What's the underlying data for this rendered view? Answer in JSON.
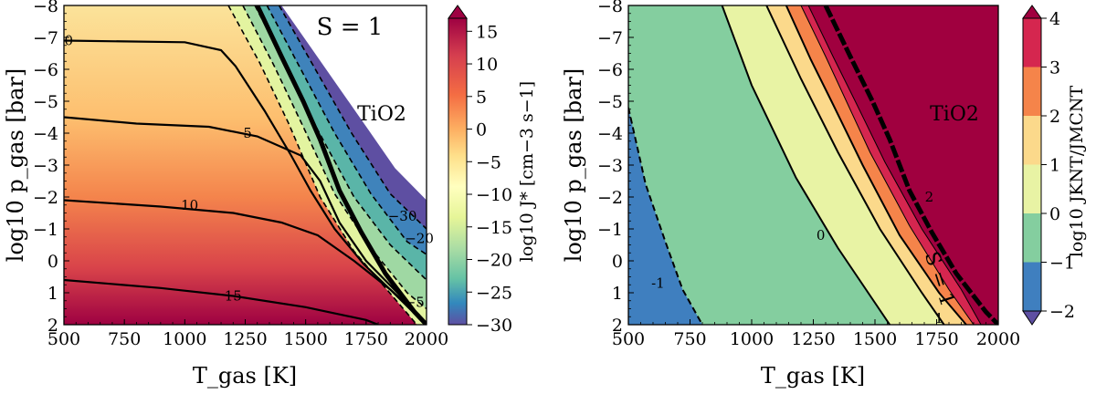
{
  "chart_data": [
    {
      "type": "heatmap",
      "title": "",
      "xlabel": "T_gas [K]",
      "ylabel": "log10 p_gas [bar]",
      "xlim": [
        500,
        2000
      ],
      "ylim": [
        2,
        -8
      ],
      "x_ticks": [
        500,
        750,
        1000,
        1250,
        1500,
        1750,
        2000
      ],
      "x_ticklabels": [
        "500",
        "750",
        "1000",
        "1250",
        "1500",
        "1750",
        "2000"
      ],
      "y_ticks": [
        -8,
        -7,
        -6,
        -5,
        -4,
        -3,
        -2,
        -1,
        0,
        1,
        2
      ],
      "y_ticklabels": [
        "−8",
        "−7",
        "−6",
        "−5",
        "−4",
        "−3",
        "−2",
        "−1",
        "0",
        "1",
        "2"
      ],
      "colorbar": {
        "label": "log10 J* [cm−3 s−1]",
        "range": [
          -30,
          17
        ],
        "ticks": [
          15,
          10,
          5,
          0,
          -5,
          -10,
          -15,
          -20,
          -25,
          -30
        ],
        "ticklabels": [
          "15",
          "10",
          "5",
          "0",
          "−5",
          "−10",
          "−15",
          "−20",
          "−25",
          "−30"
        ],
        "colormap": "Spectral_r",
        "extend": "max"
      },
      "annotations": [
        "S = 1",
        "TiO2"
      ],
      "contours": [
        {
          "level": 0,
          "label": "0",
          "points": [
            [
              500,
              -6.9
            ],
            [
              1000,
              -6.85
            ],
            [
              1150,
              -6.6
            ],
            [
              1210,
              -6.1
            ],
            [
              1330,
              -4.7
            ],
            [
              1440,
              -3.3
            ],
            [
              1520,
              -2.2
            ],
            [
              1620,
              -1.0
            ],
            [
              1740,
              0.1
            ],
            [
              1850,
              0.9
            ],
            [
              1970,
              1.7
            ]
          ]
        },
        {
          "level": 5,
          "label": "5",
          "points": [
            [
              500,
              -4.5
            ],
            [
              800,
              -4.3
            ],
            [
              1100,
              -4.2
            ],
            [
              1300,
              -3.9
            ],
            [
              1480,
              -3.3
            ],
            [
              1560,
              -2.5
            ],
            [
              1640,
              -1.2
            ],
            [
              1750,
              0.0
            ],
            [
              1880,
              1.0
            ],
            [
              1990,
              1.9
            ]
          ]
        },
        {
          "level": 10,
          "label": "10",
          "points": [
            [
              500,
              -1.9
            ],
            [
              900,
              -1.7
            ],
            [
              1200,
              -1.5
            ],
            [
              1400,
              -1.2
            ],
            [
              1550,
              -0.8
            ],
            [
              1700,
              0.0
            ],
            [
              1850,
              0.9
            ],
            [
              1990,
              1.95
            ]
          ]
        },
        {
          "level": 15,
          "label": "15",
          "points": [
            [
              500,
              0.6
            ],
            [
              900,
              0.85
            ],
            [
              1200,
              1.1
            ],
            [
              1500,
              1.45
            ],
            [
              1750,
              1.85
            ],
            [
              1800,
              2.0
            ]
          ]
        }
      ],
      "dashed_contours": [
        {
          "level": -2,
          "points": [
            [
              1180,
              -8
            ],
            [
              1310,
              -6.2
            ],
            [
              1430,
              -4.3
            ],
            [
              1560,
              -2.0
            ],
            [
              1700,
              -0.3
            ],
            [
              1870,
              1.2
            ],
            [
              1960,
              2.0
            ]
          ]
        },
        {
          "level": -5,
          "label": "−5",
          "points": [
            [
              1240,
              -8
            ],
            [
              1370,
              -6.1
            ],
            [
              1490,
              -4.2
            ],
            [
              1620,
              -2.1
            ],
            [
              1770,
              -0.4
            ],
            [
              1920,
              1.0
            ],
            [
              2000,
              1.5
            ]
          ]
        },
        {
          "level": -10,
          "points": [
            [
              1290,
              -8
            ],
            [
              1420,
              -6.1
            ],
            [
              1550,
              -4.1
            ],
            [
              1700,
              -2.0
            ],
            [
              1850,
              -0.5
            ],
            [
              2000,
              0.6
            ]
          ]
        },
        {
          "level": -20,
          "label": "−20",
          "points": [
            [
              1340,
              -8
            ],
            [
              1480,
              -6.0
            ],
            [
              1620,
              -4.0
            ],
            [
              1770,
              -2.1
            ],
            [
              1920,
              -0.6
            ],
            [
              2000,
              -0.2
            ]
          ]
        },
        {
          "level": -30,
          "label": "−30",
          "points": [
            [
              1390,
              -8
            ],
            [
              1540,
              -6.0
            ],
            [
              1690,
              -4.0
            ],
            [
              1850,
              -2.1
            ],
            [
              2000,
              -1.0
            ]
          ]
        }
      ],
      "supersaturation_curve": {
        "label": "S = 1",
        "points": [
          [
            1300,
            -8
          ],
          [
            1400,
            -6.4
          ],
          [
            1490,
            -5.0
          ],
          [
            1560,
            -3.8
          ],
          [
            1640,
            -2.2
          ],
          [
            1730,
            -0.9
          ],
          [
            1830,
            0.4
          ],
          [
            1950,
            1.6
          ],
          [
            2000,
            2.0
          ]
        ]
      },
      "stability_boundary": [
        [
          1400,
          -8
        ],
        [
          1520,
          -6.7
        ],
        [
          1640,
          -5.4
        ],
        [
          1760,
          -4.1
        ],
        [
          1870,
          -2.9
        ],
        [
          2000,
          -1.9
        ]
      ]
    },
    {
      "type": "heatmap",
      "title": "",
      "xlabel": "T_gas [K]",
      "ylabel": "log10 p_gas [bar]",
      "xlim": [
        500,
        2000
      ],
      "ylim": [
        2,
        -8
      ],
      "x_ticks": [
        500,
        750,
        1000,
        1250,
        1500,
        1750,
        2000
      ],
      "x_ticklabels": [
        "500",
        "750",
        "1000",
        "1250",
        "1500",
        "1750",
        "2000"
      ],
      "y_ticks": [
        -8,
        -7,
        -6,
        -5,
        -4,
        -3,
        -2,
        -1,
        0,
        1,
        2
      ],
      "y_ticklabels": [
        "−8",
        "−7",
        "−6",
        "−5",
        "−4",
        "−3",
        "−2",
        "−1",
        "0",
        "1",
        "2"
      ],
      "colorbar": {
        "label": "log10 JKNT/JMCNT",
        "range": [
          -2,
          4
        ],
        "ticks": [
          4,
          3,
          2,
          1,
          0,
          -1,
          -2
        ],
        "ticklabels": [
          "4",
          "3",
          "2",
          "1",
          "0",
          "−1",
          "−2"
        ],
        "bins": [
          {
            "from": -2,
            "to": -1,
            "color": "#3f7fbf"
          },
          {
            "from": -1,
            "to": 0,
            "color": "#84ce9f"
          },
          {
            "from": 0,
            "to": 1,
            "color": "#e8f3a4"
          },
          {
            "from": 1,
            "to": 2,
            "color": "#fbd98b"
          },
          {
            "from": 2,
            "to": 3,
            "color": "#f5844a"
          },
          {
            "from": 3,
            "to": 4,
            "color": "#d5264f"
          },
          {
            "from": 4,
            "to": 5,
            "color": "#a0003f"
          }
        ],
        "extend": "both"
      },
      "annotations": [
        "S = 1",
        "TiO2"
      ],
      "regions": [
        {
          "level": -1,
          "label": "-1",
          "boundary": [
            [
              500,
              -4.8
            ],
            [
              570,
              -2.4
            ],
            [
              650,
              -0.6
            ],
            [
              720,
              0.9
            ],
            [
              800,
              2.0
            ]
          ]
        },
        {
          "level": 0,
          "label": "0",
          "boundary": [
            [
              880,
              -8
            ],
            [
              1000,
              -5.5
            ],
            [
              1180,
              -2.6
            ],
            [
              1350,
              -0.4
            ],
            [
              1560,
              2.0
            ]
          ]
        },
        {
          "level": 1,
          "label": "1",
          "boundary": [
            [
              1060,
              -8
            ],
            [
              1200,
              -5.7
            ],
            [
              1350,
              -3.4
            ],
            [
              1520,
              -1.0
            ],
            [
              1690,
              1.0
            ],
            [
              1780,
              2.0
            ]
          ]
        },
        {
          "level": 2,
          "label": "2",
          "boundary": [
            [
              1140,
              -8
            ],
            [
              1240,
              -6.3
            ],
            [
              1330,
              -4.9
            ],
            [
              1450,
              -3.0
            ],
            [
              1600,
              -0.8
            ],
            [
              1760,
              1.0
            ],
            [
              1870,
              2.0
            ]
          ]
        },
        {
          "level": 3,
          "boundary": [
            [
              1200,
              -8
            ],
            [
              1300,
              -6.4
            ],
            [
              1360,
              -5.4
            ],
            [
              1480,
              -3.4
            ],
            [
              1640,
              -1.1
            ],
            [
              1800,
              0.9
            ],
            [
              1900,
              2.0
            ]
          ]
        },
        {
          "level": 4,
          "boundary": [
            [
              1230,
              -8
            ],
            [
              1330,
              -6.4
            ],
            [
              1420,
              -5.0
            ],
            [
              1540,
              -3.1
            ],
            [
              1690,
              -1.0
            ],
            [
              1850,
              0.9
            ],
            [
              1930,
              2.0
            ]
          ]
        }
      ],
      "supersaturation_curve": {
        "label": "S = 1",
        "points": [
          [
            1300,
            -8
          ],
          [
            1400,
            -6.4
          ],
          [
            1490,
            -5.0
          ],
          [
            1560,
            -3.8
          ],
          [
            1640,
            -2.2
          ],
          [
            1730,
            -0.9
          ],
          [
            1830,
            0.4
          ],
          [
            1950,
            1.6
          ],
          [
            2000,
            2.0
          ]
        ]
      }
    }
  ]
}
